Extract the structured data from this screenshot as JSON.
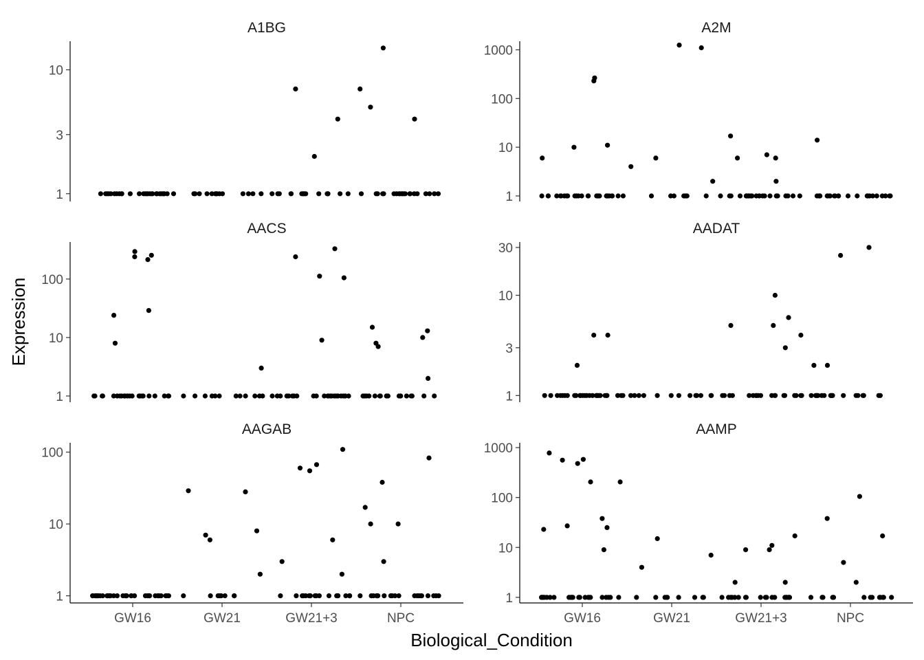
{
  "chart_data": {
    "type": "scatter",
    "subtype": "faceted jitter (strip) plot",
    "xlabel": "Biological_Condition",
    "ylabel": "Expression",
    "categories": [
      "GW16",
      "GW21",
      "GW21+3",
      "NPC"
    ],
    "y_scale": "log10",
    "colors": {
      "point": "#000000",
      "axis": "#000000",
      "tick_label": "#4d4d4d",
      "background": "#ffffff"
    },
    "facets": [
      {
        "title": "A1BG",
        "ylim": [
          0.9,
          17
        ],
        "yticks": [
          1,
          3,
          10
        ],
        "points": [
          {
            "cat": "GW16",
            "values": [
              1,
              1,
              1,
              1,
              1,
              1,
              1,
              1,
              1,
              1,
              1,
              1,
              1,
              1,
              1,
              1,
              1,
              1,
              1,
              1,
              1,
              1,
              1,
              1,
              1,
              1,
              1,
              1
            ]
          },
          {
            "cat": "GW21",
            "values": [
              1,
              1,
              1,
              1,
              1,
              1,
              1,
              1,
              1,
              1,
              1,
              1,
              1,
              1
            ]
          },
          {
            "cat": "GW21+3",
            "values": [
              4,
              7,
              2,
              1,
              1,
              1,
              1,
              1,
              1,
              1,
              1,
              1,
              1,
              1,
              1,
              1,
              1,
              1,
              1
            ]
          },
          {
            "cat": "NPC",
            "values": [
              5,
              4,
              7,
              15,
              1,
              1,
              1,
              1,
              1,
              1,
              1,
              1,
              1,
              1,
              1,
              1,
              1,
              1,
              1,
              1,
              1,
              1,
              1,
              1,
              1
            ]
          }
        ]
      },
      {
        "title": "A2M",
        "ylim": [
          0.85,
          1500
        ],
        "yticks": [
          1,
          10,
          100,
          1000
        ],
        "points": [
          {
            "cat": "GW16",
            "values": [
              6,
              230,
              265,
              10,
              11,
              1,
              1,
              1,
              1,
              1,
              1,
              1,
              1,
              1,
              1,
              1,
              1,
              1,
              1,
              1,
              1,
              1,
              1,
              1,
              1,
              1,
              1,
              1,
              1,
              1,
              1,
              1,
              1
            ]
          },
          {
            "cat": "GW21",
            "values": [
              2,
              1250,
              1100,
              6,
              4,
              1,
              1,
              1,
              1,
              1,
              1,
              1,
              1
            ]
          },
          {
            "cat": "GW21+3",
            "values": [
              2,
              17,
              7,
              6,
              6,
              1,
              1,
              1,
              1,
              1,
              1,
              1,
              1,
              1,
              1,
              1,
              1,
              1,
              1,
              1,
              1,
              1,
              1,
              1,
              1,
              1,
              1,
              1
            ]
          },
          {
            "cat": "NPC",
            "values": [
              14,
              1,
              1,
              1,
              1,
              1,
              1,
              1,
              1,
              1,
              1,
              1,
              1,
              1,
              1,
              1,
              1,
              1,
              1,
              1,
              1,
              1,
              1,
              1
            ]
          }
        ]
      },
      {
        "title": "AACS",
        "ylim": [
          0.85,
          430
        ],
        "yticks": [
          1,
          10,
          100
        ],
        "points": [
          {
            "cat": "GW16",
            "values": [
              8,
              240,
              255,
              295,
              29,
              215,
              24,
              1,
              1,
              1,
              1,
              1,
              1,
              1,
              1,
              1,
              1,
              1,
              1,
              1,
              1,
              1,
              1,
              1,
              1,
              1,
              1,
              1,
              1,
              1,
              1,
              1
            ]
          },
          {
            "cat": "GW21",
            "values": [
              3,
              1,
              1,
              1,
              1,
              1,
              1,
              1,
              1,
              1,
              1,
              1,
              1
            ]
          },
          {
            "cat": "GW21+3",
            "values": [
              105,
              240,
              330,
              112,
              9,
              1,
              1,
              1,
              1,
              1,
              1,
              1,
              1,
              1,
              1,
              1,
              1,
              1,
              1,
              1,
              1,
              1,
              1,
              1,
              1,
              1,
              1,
              1
            ]
          },
          {
            "cat": "NPC",
            "values": [
              8,
              2,
              13,
              10,
              7,
              15,
              1,
              1,
              1,
              1,
              1,
              1,
              1,
              1,
              1,
              1,
              1,
              1,
              1,
              1,
              1,
              1,
              1
            ]
          }
        ]
      },
      {
        "title": "AADAT",
        "ylim": [
          0.9,
          34
        ],
        "yticks": [
          1,
          3,
          10,
          30
        ],
        "points": [
          {
            "cat": "GW16",
            "values": [
              4,
              2,
              4,
              1,
              1,
              1,
              1,
              1,
              1,
              1,
              1,
              1,
              1,
              1,
              1,
              1,
              1,
              1,
              1,
              1,
              1,
              1,
              1,
              1,
              1,
              1,
              1,
              1,
              1,
              1
            ]
          },
          {
            "cat": "GW21",
            "values": [
              1,
              1,
              1,
              1,
              1,
              1,
              1,
              1,
              1,
              1,
              1,
              1,
              1
            ]
          },
          {
            "cat": "GW21+3",
            "values": [
              6,
              4,
              5,
              10,
              5,
              3,
              1,
              1,
              1,
              1,
              1,
              1,
              1,
              1,
              1,
              1,
              1,
              1,
              1,
              1,
              1,
              1,
              1,
              1,
              1
            ]
          },
          {
            "cat": "NPC",
            "values": [
              25,
              2,
              30,
              2,
              1,
              1,
              1,
              1,
              1,
              1,
              1,
              1,
              1,
              1,
              1,
              1,
              1,
              1,
              1,
              1,
              1,
              1
            ]
          }
        ]
      },
      {
        "title": "AAGAB",
        "ylim": [
          0.85,
          135
        ],
        "yticks": [
          1,
          10,
          100
        ],
        "points": [
          {
            "cat": "GW16",
            "values": [
              1,
              1,
              1,
              1,
              1,
              1,
              1,
              1,
              1,
              1,
              1,
              1,
              1,
              1,
              1,
              1,
              1,
              1,
              1,
              1,
              1,
              1,
              1,
              1,
              1,
              1,
              1,
              1,
              1,
              1,
              1,
              1,
              1,
              1
            ]
          },
          {
            "cat": "GW21",
            "values": [
              8,
              28,
              6,
              2,
              7,
              29,
              1,
              1,
              1,
              1,
              1,
              1,
              1,
              1
            ]
          },
          {
            "cat": "GW21+3",
            "values": [
              67,
              109,
              6,
              2,
              60,
              55,
              3,
              1,
              1,
              1,
              1,
              1,
              1,
              1,
              1,
              1,
              1,
              1,
              1,
              1,
              1,
              1,
              1,
              1,
              1,
              1
            ]
          },
          {
            "cat": "NPC",
            "values": [
              3,
              10,
              10,
              83,
              38,
              17,
              1,
              1,
              1,
              1,
              1,
              1,
              1,
              1,
              1,
              1,
              1,
              1,
              1,
              1,
              1,
              1,
              1,
              1,
              1,
              1
            ]
          }
        ]
      },
      {
        "title": "AAMP",
        "ylim": [
          0.85,
          1250
        ],
        "yticks": [
          1,
          10,
          100,
          1000
        ],
        "points": [
          {
            "cat": "GW16",
            "values": [
              9,
              27,
              38,
              780,
              205,
              560,
              480,
              23,
              205,
              580,
              25,
              1,
              1,
              1,
              1,
              1,
              1,
              1,
              1,
              1,
              1,
              1,
              1,
              1,
              1,
              1,
              1,
              1,
              1,
              1,
              1,
              1,
              1,
              1,
              1
            ]
          },
          {
            "cat": "GW21",
            "values": [
              4,
              15,
              7,
              1,
              1,
              1,
              1,
              1,
              1,
              1,
              1,
              1
            ]
          },
          {
            "cat": "GW21+3",
            "values": [
              2,
              17,
              9,
              9,
              2,
              11,
              1,
              1,
              1,
              1,
              1,
              1,
              1,
              1,
              1,
              1,
              1,
              1,
              1,
              1,
              1,
              1,
              1,
              1,
              1
            ]
          },
          {
            "cat": "NPC",
            "values": [
              2,
              5,
              17,
              105,
              38,
              1,
              1,
              1,
              1,
              1,
              1,
              1,
              1,
              1,
              1,
              1,
              1,
              1
            ]
          }
        ]
      }
    ]
  }
}
